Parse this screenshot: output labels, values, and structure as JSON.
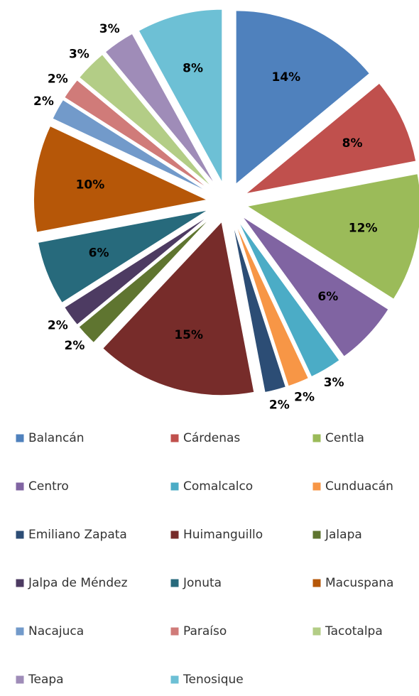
{
  "chart_data": {
    "type": "pie",
    "categories": [
      "Balancán",
      "Cárdenas",
      "Centla",
      "Centro",
      "Comalcalco",
      "Cunduacán",
      "Emiliano Zapata",
      "Huimanguillo",
      "Jalapa",
      "Jalpa de Méndez",
      "Jonuta",
      "Macuspana",
      "Nacajuca",
      "Paraíso",
      "Tacotalpa",
      "Teapa",
      "Tenosique"
    ],
    "values": [
      14,
      8,
      12,
      6,
      3,
      2,
      2,
      15,
      2,
      2,
      6,
      10,
      2,
      2,
      3,
      3,
      8
    ],
    "value_labels": [
      "14%",
      "8%",
      "12%",
      "6%",
      "3%",
      "2%",
      "2%",
      "15%",
      "2%",
      "2%",
      "6%",
      "10%",
      "2%",
      "2%",
      "3%",
      "3%",
      "8%"
    ],
    "colors": [
      "#4f81bd",
      "#c0504d",
      "#9bbb59",
      "#8064a2",
      "#4bacc6",
      "#f79646",
      "#2c4d75",
      "#772c2a",
      "#5f7530",
      "#4d3b62",
      "#276a7c",
      "#b65708",
      "#729aca",
      "#d07b79",
      "#b3cd86",
      "#9f8cb8",
      "#6dc0d5"
    ],
    "legend": "bottom"
  }
}
